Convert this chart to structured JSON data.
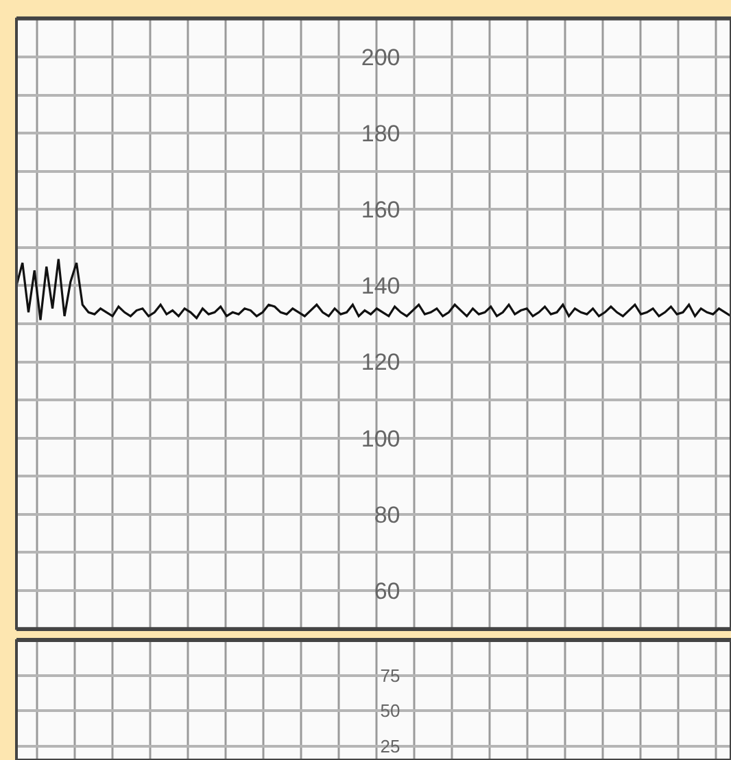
{
  "chart_data": [
    {
      "type": "line",
      "categories": [
        null,
        null,
        null,
        null,
        null,
        null,
        null,
        null,
        null,
        null,
        null,
        null,
        null,
        null,
        null,
        null,
        null,
        null,
        null,
        null,
        null,
        null,
        null,
        null,
        null,
        null,
        null,
        null,
        null,
        null,
        null,
        null,
        null,
        null,
        null,
        null,
        null,
        null,
        null,
        null,
        null,
        null,
        null,
        null,
        null,
        null,
        null,
        null,
        null,
        null,
        null,
        null,
        null,
        null,
        null,
        null,
        null,
        null,
        null,
        null,
        null,
        null,
        null,
        null,
        null,
        null,
        null,
        null,
        null,
        null,
        null,
        null,
        null,
        null,
        null,
        null,
        null,
        null,
        null,
        null,
        null,
        null,
        null,
        null,
        null,
        null,
        null,
        null,
        null,
        null,
        null,
        null,
        null,
        null,
        null,
        null,
        null,
        null,
        null,
        null,
        null,
        null,
        null,
        null,
        null,
        null,
        null,
        null,
        null,
        null,
        null,
        null,
        null,
        null,
        null,
        null,
        null,
        null,
        null,
        null
      ],
      "ylim": [
        50,
        210
      ],
      "yticks": [
        60,
        {
          "value": 70,
          "label": null
        },
        80,
        {
          "value": 90,
          "label": null
        },
        100,
        {
          "value": 110,
          "label": null
        },
        120,
        {
          "value": 130,
          "label": null
        },
        140,
        {
          "value": 150,
          "label": null
        },
        160,
        {
          "value": 170,
          "label": null
        },
        180,
        {
          "value": 190,
          "label": null
        },
        200
      ],
      "tick_labels": "y",
      "grid": true,
      "line_style": "solid",
      "marker": "none",
      "series": [
        {
          "color": "#111111",
          "values": [
            140,
            146,
            133,
            144,
            131,
            145,
            134,
            147,
            132,
            141,
            146,
            135,
            133,
            132.5,
            134,
            133,
            132,
            134.5,
            133,
            132,
            133.5,
            134,
            132,
            133,
            135,
            132.5,
            133.5,
            132,
            134,
            133,
            131.5,
            134,
            132.5,
            133,
            134.5,
            132,
            133,
            132.5,
            134,
            133.5,
            132,
            133,
            135,
            134.5,
            133,
            132.5,
            134,
            133,
            132,
            133.5,
            135,
            133,
            132,
            134,
            132.5,
            133,
            135,
            132,
            133.5,
            132.5,
            134,
            133,
            132,
            134.5,
            133,
            132,
            133.5,
            135,
            132.5,
            133,
            134,
            132,
            133,
            135,
            133.5,
            132,
            134,
            132.5,
            133,
            134.5,
            132,
            133,
            135,
            132.5,
            133.5,
            134,
            132,
            133,
            134.5,
            132.5,
            133,
            135,
            132,
            134,
            133,
            132.5,
            134,
            132,
            133,
            134.5,
            133,
            132,
            133.5,
            135,
            132.5,
            133,
            134,
            132,
            133,
            134.5,
            132.5,
            133,
            135,
            132,
            134,
            133,
            132.5,
            134,
            133,
            132
          ]
        }
      ]
    },
    {
      "type": "line",
      "categories": [
        null,
        null
      ],
      "ylim": [
        15,
        100
      ],
      "yticks": [
        25,
        50,
        75
      ],
      "tick_labels": "y",
      "grid": true,
      "series": [
        {
          "color": "#111111",
          "values": [
            null,
            null
          ]
        }
      ]
    }
  ]
}
